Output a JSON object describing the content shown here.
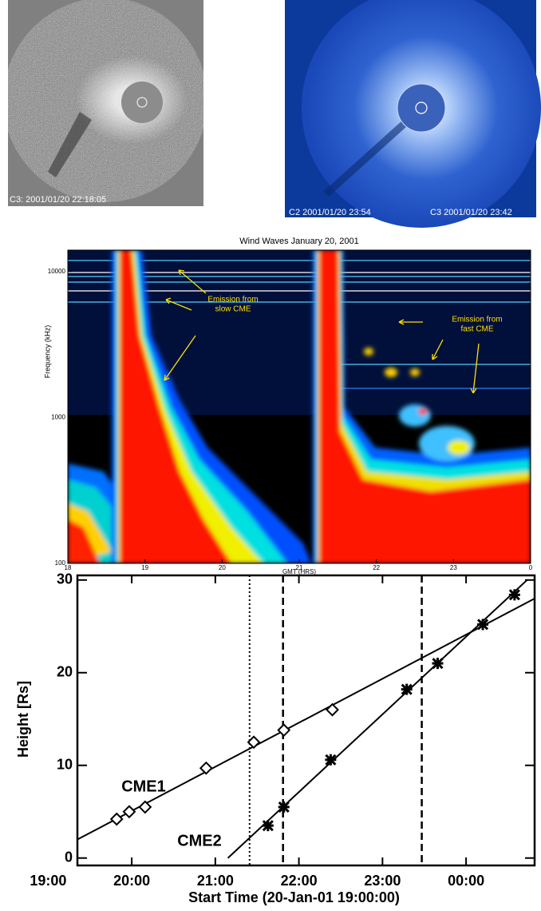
{
  "images": [
    {
      "labels": [
        "C3: 2001/01/20 22:18:05"
      ]
    },
    {
      "labels": [
        "C2 2001/01/20 23:54",
        "C3 2001/01/20 23:42"
      ]
    }
  ],
  "chart_data": [
    {
      "type": "spectrogram",
      "title": "Wind Waves January 20, 2001",
      "xlabel": "GMT (HRS)",
      "ylabel": "Frequency (kHz)",
      "xlim": [
        18,
        24
      ],
      "xticks": [
        18,
        19,
        20,
        21,
        22,
        23,
        {
          "value": 24,
          "label": "0"
        }
      ],
      "ylim": [
        100,
        14000
      ],
      "yticks": [
        100,
        1000,
        10000
      ],
      "log_y": true,
      "annotations": [
        {
          "lines": [
            "Emission from",
            "slow CME"
          ]
        },
        {
          "lines": [
            "Emission from",
            "fast CME"
          ]
        }
      ]
    },
    {
      "type": "scatter",
      "xlabel": "Start Time (20-Jan-01 19:00:00)",
      "ylabel": "Height [Rs]",
      "xlim": [
        19.35,
        24.82
      ],
      "xticks": [
        {
          "value": 19,
          "label": "19:00"
        },
        {
          "value": 20,
          "label": "20:00"
        },
        {
          "value": 21,
          "label": "21:00"
        },
        {
          "value": 22,
          "label": "22:00"
        },
        {
          "value": 23,
          "label": "23:00"
        },
        {
          "value": 24,
          "label": "00:00"
        }
      ],
      "ylim": [
        -0.8,
        30.5
      ],
      "yticks": [
        0,
        10,
        20,
        30
      ],
      "color": "#000000",
      "series": [
        {
          "name": "CME1",
          "marker": "diamond",
          "x": [
            19.82,
            19.97,
            20.16,
            20.89,
            21.46,
            21.82,
            22.4
          ],
          "values": [
            4.2,
            5.0,
            5.5,
            9.7,
            12.5,
            13.8,
            16.0
          ]
        },
        {
          "name": "CME2",
          "marker": "star",
          "x": [
            21.63,
            21.82,
            22.38,
            23.29,
            23.66,
            24.2,
            24.58
          ],
          "values": [
            3.5,
            5.5,
            10.6,
            18.2,
            21.0,
            25.2,
            28.4
          ]
        }
      ],
      "fits": [
        {
          "x": [
            19.35,
            24.82
          ],
          "values": [
            2,
            28
          ]
        },
        {
          "x": [
            21.15,
            24.73
          ],
          "values": [
            0,
            30
          ]
        }
      ],
      "vlines": [
        {
          "x": 21.41,
          "style": "dotted"
        },
        {
          "x": 21.81,
          "style": "dashed"
        },
        {
          "x": 23.47,
          "style": "dashed"
        }
      ]
    }
  ]
}
